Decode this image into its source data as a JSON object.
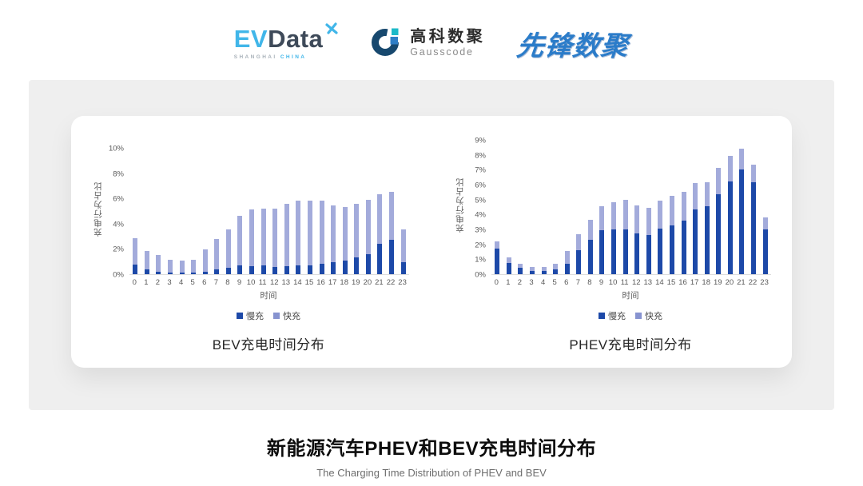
{
  "header": {
    "evdata": {
      "part1": "EV",
      "part2": "Data",
      "sub1": "SHANGHAI",
      "sub2": "CHINA"
    },
    "gausscode": {
      "name_cn": "高科数聚",
      "name_en": "Gausscode"
    },
    "pioneer": {
      "name": "先锋数聚"
    }
  },
  "icons": {
    "evdata_star": "x-star-spark",
    "gausscode_mark": "g-ring-with-squares"
  },
  "colors": {
    "slow": "#1D49A8",
    "fast": "#A3ABDB",
    "fast_legend": "#8793D0",
    "accent_cyan": "#41B6E9",
    "dark_slate": "#3E4A59",
    "pioneer_blue": "#2B7CC9",
    "gauss_navy": "#17486E",
    "gauss_teal": "#1CB9C8",
    "gauss_blue": "#2F7EC6",
    "panel_gray": "#EFEFEF"
  },
  "chart_data": [
    {
      "type": "bar",
      "stacked": true,
      "title": "BEV充电时间分布",
      "xlabel": "时间",
      "ylabel": "充电行为占比",
      "grid": false,
      "legend_position": "bottom",
      "ylim": [
        0,
        10
      ],
      "ytick_values": [
        0,
        2,
        4,
        6,
        8,
        10
      ],
      "ytick_labels": [
        "0%",
        "2%",
        "4%",
        "6%",
        "8%",
        "10%"
      ],
      "categories": [
        "0",
        "1",
        "2",
        "3",
        "4",
        "5",
        "6",
        "7",
        "8",
        "9",
        "10",
        "11",
        "12",
        "13",
        "14",
        "15",
        "16",
        "17",
        "18",
        "19",
        "20",
        "21",
        "22",
        "23"
      ],
      "series": [
        {
          "name": "慢充",
          "values": [
            0.75,
            0.35,
            0.2,
            0.12,
            0.1,
            0.12,
            0.18,
            0.38,
            0.52,
            0.7,
            0.65,
            0.7,
            0.6,
            0.65,
            0.7,
            0.7,
            0.8,
            0.95,
            1.1,
            1.3,
            1.6,
            2.4,
            2.75,
            0.95
          ]
        },
        {
          "name": "快充",
          "values": [
            2.1,
            1.5,
            1.3,
            1.05,
            0.95,
            1.05,
            1.8,
            2.4,
            3.0,
            3.9,
            4.5,
            4.5,
            4.6,
            4.95,
            5.1,
            5.1,
            5.05,
            4.5,
            4.2,
            4.3,
            4.3,
            3.9,
            3.8,
            2.6
          ]
        }
      ]
    },
    {
      "type": "bar",
      "stacked": true,
      "title": "PHEV充电时间分布",
      "xlabel": "时间",
      "ylabel": "充电行为占比",
      "grid": false,
      "legend_position": "bottom",
      "ylim": [
        0,
        9
      ],
      "ytick_values": [
        0,
        1,
        2,
        3,
        4,
        5,
        6,
        7,
        8,
        9
      ],
      "ytick_labels": [
        "0%",
        "1%",
        "2%",
        "3%",
        "4%",
        "5%",
        "6%",
        "7%",
        "8%",
        "9%"
      ],
      "categories": [
        "0",
        "1",
        "2",
        "3",
        "4",
        "5",
        "6",
        "7",
        "8",
        "9",
        "10",
        "11",
        "12",
        "13",
        "14",
        "15",
        "16",
        "17",
        "18",
        "19",
        "20",
        "21",
        "22",
        "23"
      ],
      "series": [
        {
          "name": "慢充",
          "values": [
            1.7,
            0.75,
            0.45,
            0.22,
            0.22,
            0.3,
            0.72,
            1.6,
            2.3,
            2.95,
            3.0,
            3.0,
            2.75,
            2.6,
            3.05,
            3.25,
            3.6,
            4.35,
            4.55,
            5.35,
            6.2,
            7.0,
            6.15,
            3.0
          ]
        },
        {
          "name": "快充",
          "values": [
            0.5,
            0.4,
            0.27,
            0.25,
            0.25,
            0.4,
            0.85,
            1.1,
            1.35,
            1.6,
            1.8,
            2.0,
            1.85,
            1.85,
            1.9,
            2.0,
            1.92,
            1.78,
            1.6,
            1.75,
            1.72,
            1.4,
            1.2,
            0.82
          ]
        }
      ]
    }
  ],
  "footer": {
    "title": "新能源汽车PHEV和BEV充电时间分布",
    "subtitle": "The Charging Time Distribution of PHEV and BEV"
  }
}
